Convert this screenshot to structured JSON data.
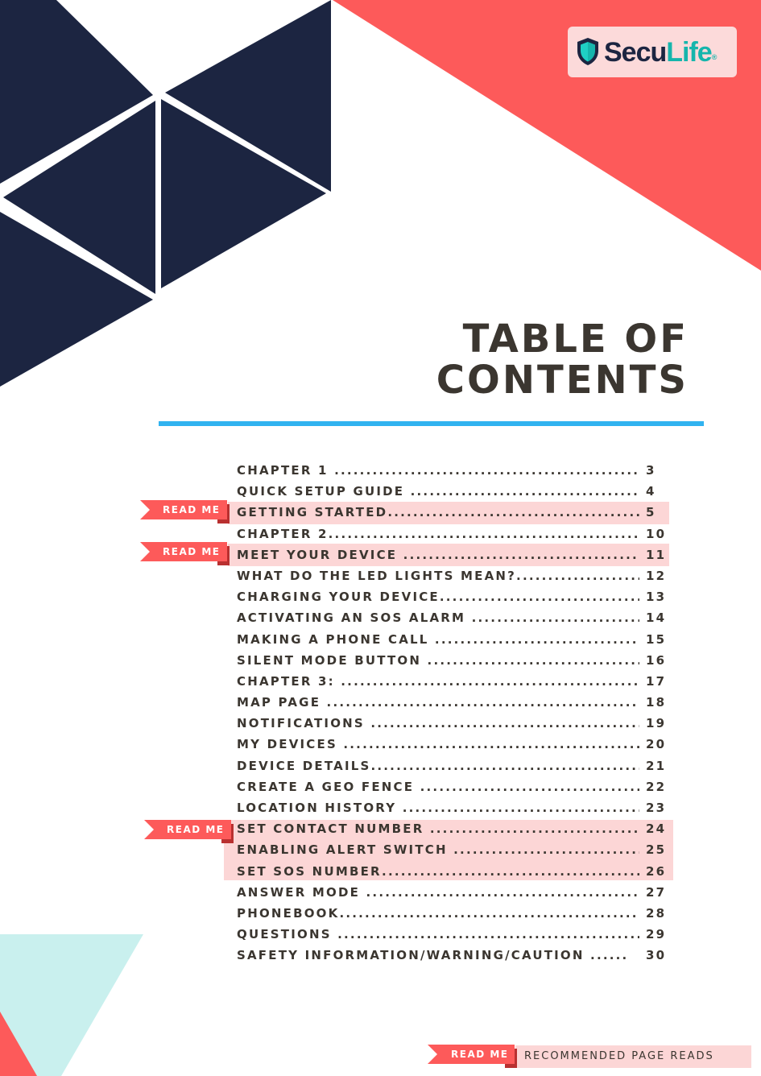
{
  "brand": {
    "name_part1": "Secu",
    "name_part2": "Life",
    "registered": "®"
  },
  "title": {
    "line1": "TABLE OF",
    "line2": "CONTENTS"
  },
  "colors": {
    "navy": "#1c2541",
    "coral": "#fd5a5a",
    "accent_blue": "#31b3f0",
    "highlight_pink": "#fcd6d6",
    "mint": "#c9f0ee"
  },
  "toc": [
    {
      "label": "CHAPTER 1 .............................................................",
      "page": "3"
    },
    {
      "label": "QUICK SETUP GUIDE .............................................",
      "page": "4"
    },
    {
      "label": "GETTING STARTED.................................................",
      "page": "5"
    },
    {
      "label": "CHAPTER 2............................................................",
      "page": "10"
    },
    {
      "label": "MEET YOUR DEVICE ............................................",
      "page": "11"
    },
    {
      "label": "WHAT DO THE LED LIGHTS MEAN?......................",
      "page": "12"
    },
    {
      "label": "CHARGING YOUR DEVICE......................................",
      "page": "13"
    },
    {
      "label": "ACTIVATING AN SOS ALARM ...............................",
      "page": "14"
    },
    {
      "label": "MAKING A PHONE CALL .......................................",
      "page": "15"
    },
    {
      "label": "SILENT MODE BUTTON .........................................",
      "page": "16"
    },
    {
      "label": "CHAPTER 3: .........................................................",
      "page": "17"
    },
    {
      "label": "MAP PAGE ...........................................................",
      "page": "18"
    },
    {
      "label": "NOTIFICATIONS ...................................................",
      "page": "19"
    },
    {
      "label": "MY DEVICES ........................................................",
      "page": "20"
    },
    {
      "label": "DEVICE DETAILS...................................................",
      "page": "21"
    },
    {
      "label": "CREATE A GEO FENCE ..........................................",
      "page": "22"
    },
    {
      "label": "LOCATION HISTORY ............................................",
      "page": "23"
    },
    {
      "label": "SET CONTACT NUMBER .......................................",
      "page": "24"
    },
    {
      "label": "ENABLING  ALERT SWITCH ...................................",
      "page": "25"
    },
    {
      "label": "SET SOS NUMBER.................................................",
      "page": "26"
    },
    {
      "label": "ANSWER MODE ...................................................",
      "page": "27"
    },
    {
      "label": "PHONEBOOK........................................................",
      "page": "28"
    },
    {
      "label": "QUESTIONS .........................................................",
      "page": "29"
    },
    {
      "label": "SAFETY INFORMATION/WARNING/CAUTION ......",
      "page": "30"
    }
  ],
  "tags": {
    "read_me": "READ ME"
  },
  "legend": {
    "tag": "READ ME",
    "text": "RECOMMENDED PAGE READS"
  }
}
